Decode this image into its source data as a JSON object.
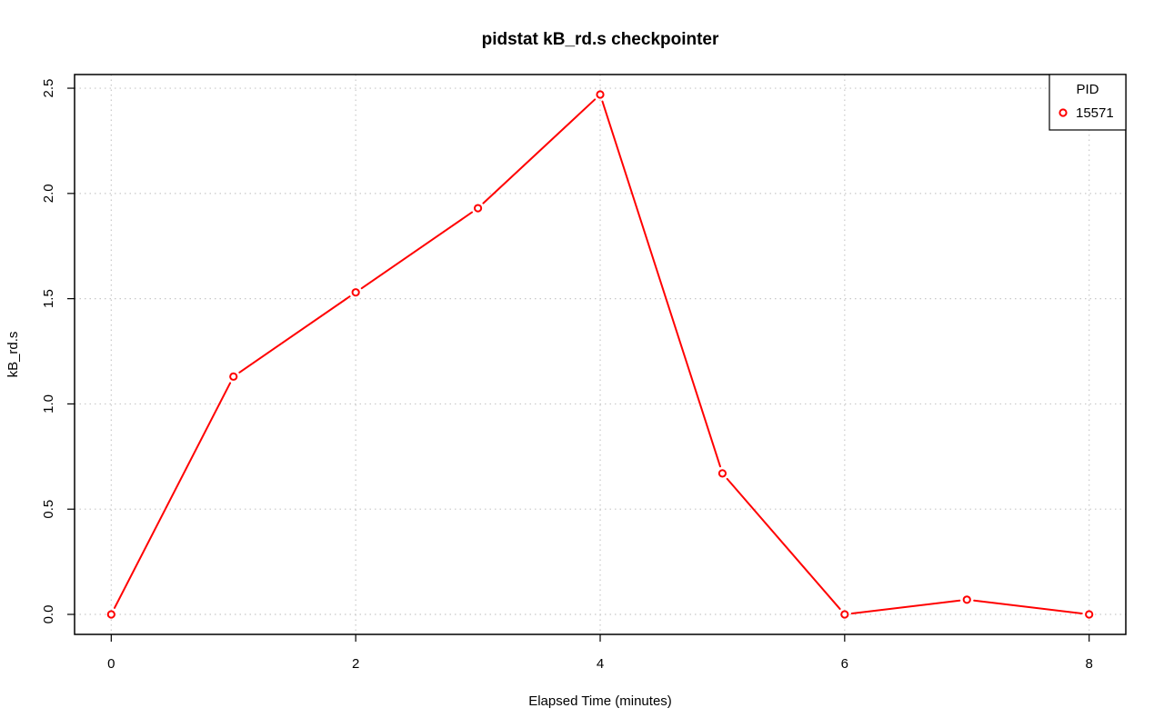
{
  "chart_data": {
    "type": "line",
    "title": "pidstat kB_rd.s checkpointer",
    "xlabel": "Elapsed Time (minutes)",
    "ylabel": "kB_rd.s",
    "xlim": [
      -0.3,
      8.3
    ],
    "ylim": [
      -0.095,
      2.565
    ],
    "x_ticks": [
      0,
      2,
      4,
      6,
      8
    ],
    "y_ticks": [
      0.0,
      0.5,
      1.0,
      1.5,
      2.0,
      2.5
    ],
    "x_tick_labels": [
      "0",
      "2",
      "4",
      "6",
      "8"
    ],
    "y_tick_labels": [
      "0.0",
      "0.5",
      "1.0",
      "1.5",
      "2.0",
      "2.5"
    ],
    "grid": true,
    "legend": {
      "title": "PID",
      "placement": "top-right"
    },
    "series": [
      {
        "name": "15571",
        "color": "#ff0000",
        "marker": "open-circle",
        "x": [
          0,
          1,
          2,
          3,
          4,
          5,
          6,
          7,
          8
        ],
        "y": [
          0.0,
          1.13,
          1.53,
          1.93,
          2.47,
          0.67,
          0.0,
          0.07,
          0.0
        ]
      }
    ]
  }
}
